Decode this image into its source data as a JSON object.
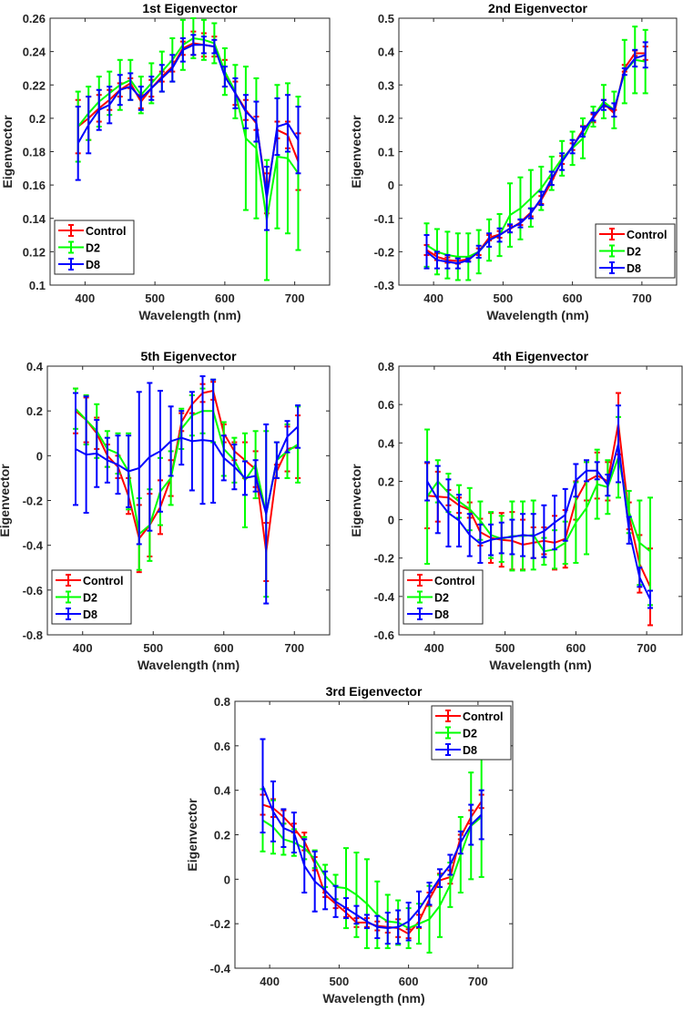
{
  "colors": {
    "Control": "#ff0000",
    "D2": "#00ff00",
    "D8": "#0000ff"
  },
  "chart_data": [
    {
      "type": "line",
      "title": "1st Eigenvector",
      "xlabel": "Wavelength (nm)",
      "ylabel": "Eigenvector",
      "xlim": [
        350,
        750
      ],
      "ylim": [
        0.1,
        0.26
      ],
      "xticks": [
        400,
        500,
        600,
        700
      ],
      "yticks": [
        0.1,
        0.12,
        0.14,
        0.16,
        0.18,
        0.2,
        0.22,
        0.24,
        0.26
      ],
      "legend_position": "bottom-left",
      "x": [
        390,
        405,
        420,
        435,
        450,
        465,
        480,
        495,
        510,
        525,
        540,
        555,
        570,
        585,
        600,
        615,
        630,
        645,
        660,
        675,
        690,
        705
      ],
      "series": [
        {
          "name": "Control",
          "values": [
            0.195,
            0.2,
            0.206,
            0.211,
            0.217,
            0.221,
            0.21,
            0.218,
            0.225,
            0.231,
            0.242,
            0.245,
            0.244,
            0.243,
            0.227,
            0.215,
            0.205,
            0.197,
            0.155,
            0.193,
            0.19,
            0.174
          ],
          "errors": [
            0.016,
            0.013,
            0.008,
            0.006,
            0.004,
            0.003,
            0.004,
            0.005,
            0.003,
            0.003,
            0.004,
            0.007,
            0.007,
            0.006,
            0.008,
            0.007,
            0.006,
            0.004,
            0.012,
            0.005,
            0.008,
            0.017
          ]
        },
        {
          "name": "D2",
          "values": [
            0.195,
            0.203,
            0.21,
            0.215,
            0.22,
            0.223,
            0.214,
            0.221,
            0.228,
            0.235,
            0.244,
            0.248,
            0.247,
            0.245,
            0.228,
            0.216,
            0.188,
            0.182,
            0.139,
            0.177,
            0.176,
            0.167
          ],
          "errors": [
            0.021,
            0.016,
            0.015,
            0.013,
            0.015,
            0.012,
            0.011,
            0.012,
            0.012,
            0.013,
            0.015,
            0.012,
            0.012,
            0.012,
            0.014,
            0.016,
            0.043,
            0.042,
            0.036,
            0.043,
            0.045,
            0.046
          ]
        },
        {
          "name": "D8",
          "values": [
            0.185,
            0.196,
            0.205,
            0.208,
            0.217,
            0.219,
            0.212,
            0.218,
            0.224,
            0.23,
            0.241,
            0.244,
            0.244,
            0.243,
            0.225,
            0.215,
            0.204,
            0.198,
            0.152,
            0.195,
            0.197,
            0.187
          ],
          "errors": [
            0.022,
            0.017,
            0.012,
            0.011,
            0.009,
            0.008,
            0.007,
            0.007,
            0.008,
            0.008,
            0.007,
            0.006,
            0.005,
            0.004,
            0.006,
            0.009,
            0.01,
            0.012,
            0.019,
            0.017,
            0.017,
            0.02
          ]
        }
      ]
    },
    {
      "type": "line",
      "title": "2nd Eigenvector",
      "xlabel": "Wavelength (nm)",
      "ylabel": "Eigenvector",
      "xlim": [
        350,
        750
      ],
      "ylim": [
        -0.3,
        0.5
      ],
      "xticks": [
        400,
        500,
        600,
        700
      ],
      "yticks": [
        -0.3,
        -0.2,
        -0.1,
        0,
        0.1,
        0.2,
        0.3,
        0.4,
        0.5
      ],
      "legend_position": "bottom-right",
      "x": [
        390,
        405,
        420,
        435,
        450,
        465,
        480,
        495,
        510,
        525,
        540,
        555,
        570,
        585,
        600,
        615,
        630,
        645,
        660,
        675,
        690,
        705
      ],
      "series": [
        {
          "name": "Control",
          "values": [
            -0.195,
            -0.215,
            -0.225,
            -0.228,
            -0.222,
            -0.2,
            -0.158,
            -0.148,
            -0.132,
            -0.112,
            -0.082,
            -0.045,
            0.01,
            0.075,
            0.115,
            0.165,
            0.2,
            0.245,
            0.215,
            0.35,
            0.395,
            0.395
          ],
          "errors": [
            0.015,
            0.01,
            0.008,
            0.008,
            0.006,
            0.01,
            0.008,
            0.01,
            0.01,
            0.008,
            0.012,
            0.012,
            0.01,
            0.012,
            0.01,
            0.012,
            0.012,
            0.01,
            0.01,
            0.01,
            0.008,
            0.02
          ]
        },
        {
          "name": "D2",
          "values": [
            -0.18,
            -0.2,
            -0.21,
            -0.215,
            -0.215,
            -0.2,
            -0.165,
            -0.15,
            -0.09,
            -0.07,
            -0.04,
            -0.01,
            0.035,
            0.08,
            0.11,
            0.14,
            0.205,
            0.25,
            0.225,
            0.34,
            0.375,
            0.37
          ],
          "errors": [
            0.065,
            0.068,
            0.07,
            0.07,
            0.07,
            0.065,
            0.062,
            0.063,
            0.095,
            0.093,
            0.085,
            0.065,
            0.05,
            0.052,
            0.05,
            0.06,
            0.03,
            0.05,
            0.055,
            0.095,
            0.1,
            0.095
          ]
        },
        {
          "name": "D8",
          "values": [
            -0.2,
            -0.225,
            -0.23,
            -0.235,
            -0.225,
            -0.2,
            -0.165,
            -0.15,
            -0.13,
            -0.115,
            -0.085,
            -0.04,
            0.02,
            0.07,
            0.115,
            0.16,
            0.205,
            0.24,
            0.225,
            0.34,
            0.38,
            0.39
          ],
          "errors": [
            0.05,
            0.025,
            0.02,
            0.015,
            0.005,
            0.018,
            0.02,
            0.02,
            0.012,
            0.012,
            0.015,
            0.02,
            0.02,
            0.025,
            0.02,
            0.015,
            0.012,
            0.015,
            0.02,
            0.01,
            0.025,
            0.038
          ]
        }
      ]
    },
    {
      "type": "line",
      "title": "5th Eigenvector",
      "xlabel": "Wavelength (nm)",
      "ylabel": "Eigenvector",
      "xlim": [
        350,
        750
      ],
      "ylim": [
        -0.8,
        0.4
      ],
      "xticks": [
        400,
        500,
        600,
        700
      ],
      "yticks": [
        -0.8,
        -0.6,
        -0.4,
        -0.2,
        0,
        0.2,
        0.4
      ],
      "legend_position": "bottom-left",
      "x": [
        390,
        405,
        420,
        435,
        450,
        465,
        480,
        495,
        510,
        525,
        540,
        555,
        570,
        585,
        600,
        615,
        630,
        645,
        660,
        675,
        690,
        705
      ],
      "series": [
        {
          "name": "Control",
          "values": [
            0.2,
            0.16,
            0.1,
            0.0,
            -0.05,
            -0.18,
            -0.37,
            -0.31,
            -0.23,
            -0.1,
            0.15,
            0.23,
            0.28,
            0.29,
            0.1,
            0.02,
            -0.02,
            -0.06,
            -0.43,
            -0.07,
            0.03,
            0.04
          ],
          "errors": [
            0.1,
            0.1,
            0.07,
            0.05,
            0.05,
            0.08,
            0.15,
            0.14,
            0.12,
            0.08,
            0.04,
            0.04,
            0.04,
            0.04,
            0.04,
            0.04,
            0.08,
            0.08,
            0.13,
            0.03,
            0.1,
            0.14
          ]
        },
        {
          "name": "D2",
          "values": [
            0.21,
            0.16,
            0.11,
            0.03,
            0.01,
            -0.07,
            -0.35,
            -0.31,
            -0.16,
            -0.1,
            0.12,
            0.18,
            0.2,
            0.2,
            0.03,
            -0.02,
            -0.11,
            -0.04,
            -0.26,
            -0.02,
            0.02,
            0.05
          ],
          "errors": [
            0.09,
            0.11,
            0.12,
            0.08,
            0.09,
            0.17,
            0.16,
            0.16,
            0.15,
            0.12,
            0.09,
            0.09,
            0.1,
            0.14,
            0.12,
            0.1,
            0.21,
            0.15,
            0.37,
            0.08,
            0.12,
            0.17
          ]
        },
        {
          "name": "D8",
          "values": [
            0.03,
            0.005,
            0.01,
            -0.02,
            -0.04,
            -0.07,
            -0.055,
            -0.005,
            0.02,
            0.065,
            0.08,
            0.065,
            0.07,
            0.065,
            -0.01,
            -0.05,
            -0.1,
            -0.09,
            -0.26,
            -0.02,
            0.085,
            0.13
          ],
          "errors": [
            0.25,
            0.26,
            0.15,
            0.1,
            0.13,
            0.16,
            0.34,
            0.33,
            0.27,
            0.155,
            0.12,
            0.22,
            0.285,
            0.275,
            0.1,
            0.1,
            0.075,
            0.07,
            0.4,
            0.08,
            0.07,
            0.095
          ]
        }
      ]
    },
    {
      "type": "line",
      "title": "4th Eigenvector",
      "xlabel": "Wavelength (nm)",
      "ylabel": "Eigenvector",
      "xlim": [
        350,
        750
      ],
      "ylim": [
        -0.6,
        0.8
      ],
      "xticks": [
        400,
        500,
        600,
        700
      ],
      "yticks": [
        -0.6,
        -0.4,
        -0.2,
        0,
        0.2,
        0.4,
        0.6,
        0.8
      ],
      "legend_position": "bottom-left",
      "x": [
        390,
        405,
        420,
        435,
        450,
        465,
        480,
        495,
        510,
        525,
        540,
        555,
        570,
        585,
        600,
        615,
        630,
        645,
        660,
        675,
        690,
        705
      ],
      "series": [
        {
          "name": "Control",
          "values": [
            0.125,
            0.12,
            0.115,
            0.075,
            0.05,
            -0.065,
            -0.095,
            -0.105,
            -0.11,
            -0.13,
            -0.12,
            -0.11,
            -0.12,
            -0.1,
            0.1,
            0.2,
            0.23,
            0.2,
            0.5,
            0.02,
            -0.23,
            -0.35
          ],
          "errors": [
            0.17,
            0.13,
            0.04,
            0.04,
            0.04,
            0.07,
            0.13,
            0.14,
            0.15,
            0.13,
            0.08,
            0.07,
            0.14,
            0.15,
            0.1,
            0.1,
            0.12,
            0.1,
            0.16,
            0.07,
            0.15,
            0.2
          ]
        },
        {
          "name": "D2",
          "values": [
            0.12,
            0.2,
            0.14,
            0.095,
            0.055,
            -0.005,
            -0.08,
            -0.1,
            -0.085,
            -0.085,
            -0.08,
            -0.165,
            -0.155,
            -0.12,
            -0.015,
            0.06,
            0.185,
            0.17,
            0.325,
            0.04,
            -0.12,
            -0.165
          ],
          "errors": [
            0.35,
            0.11,
            0.1,
            0.085,
            0.11,
            0.1,
            0.12,
            0.12,
            0.18,
            0.18,
            0.18,
            0.07,
            0.1,
            0.11,
            0.21,
            0.24,
            0.18,
            0.14,
            0.21,
            0.11,
            0.22,
            0.28
          ]
        },
        {
          "name": "D8",
          "values": [
            0.2,
            0.105,
            0.035,
            -0.005,
            -0.08,
            -0.125,
            -0.105,
            -0.095,
            -0.09,
            -0.08,
            -0.085,
            -0.06,
            -0.015,
            0.025,
            0.205,
            0.255,
            0.255,
            0.18,
            0.395,
            -0.055,
            -0.3,
            -0.415
          ],
          "errors": [
            0.1,
            0.175,
            0.175,
            0.135,
            0.11,
            0.1,
            0.08,
            0.08,
            0.09,
            0.11,
            0.115,
            0.135,
            0.14,
            0.135,
            0.085,
            0.055,
            0.045,
            0.055,
            0.2,
            0.07,
            0.05,
            0.045
          ]
        }
      ]
    },
    {
      "type": "line",
      "title": "3rd Eigenvector",
      "xlabel": "Wavelength (nm)",
      "ylabel": "Eigenvector",
      "xlim": [
        350,
        750
      ],
      "ylim": [
        -0.4,
        0.8
      ],
      "xticks": [
        400,
        500,
        600,
        700
      ],
      "yticks": [
        -0.4,
        -0.2,
        0,
        0.2,
        0.4,
        0.6,
        0.8
      ],
      "legend_position": "top-right",
      "x": [
        390,
        405,
        420,
        435,
        450,
        465,
        480,
        495,
        510,
        525,
        540,
        555,
        570,
        585,
        600,
        615,
        630,
        645,
        660,
        675,
        690,
        705
      ],
      "series": [
        {
          "name": "Control",
          "values": [
            0.335,
            0.32,
            0.28,
            0.23,
            0.17,
            0.07,
            -0.07,
            -0.11,
            -0.15,
            -0.195,
            -0.195,
            -0.21,
            -0.215,
            -0.22,
            -0.245,
            -0.19,
            -0.09,
            -0.005,
            0.01,
            0.19,
            0.28,
            0.35
          ],
          "errors": [
            0.045,
            0.04,
            0.03,
            0.02,
            0.04,
            0.03,
            0.01,
            0.02,
            0.02,
            0.02,
            0.02,
            0.02,
            0.025,
            0.04,
            0.02,
            0.03,
            0.03,
            0.03,
            0.03,
            0.01,
            0.03,
            0.03
          ]
        },
        {
          "name": "D2",
          "values": [
            0.265,
            0.235,
            0.18,
            0.165,
            0.14,
            0.09,
            0.015,
            -0.035,
            -0.04,
            -0.07,
            -0.11,
            -0.16,
            -0.19,
            -0.195,
            -0.22,
            -0.2,
            -0.18,
            -0.12,
            -0.025,
            0.11,
            0.24,
            0.28
          ],
          "errors": [
            0.14,
            0.12,
            0.07,
            0.06,
            0.05,
            0.04,
            0.05,
            0.055,
            0.18,
            0.19,
            0.2,
            0.15,
            0.12,
            0.1,
            0.09,
            0.09,
            0.15,
            0.14,
            0.1,
            0.17,
            0.24,
            0.27
          ]
        },
        {
          "name": "D8",
          "values": [
            0.42,
            0.305,
            0.23,
            0.21,
            0.06,
            -0.01,
            -0.05,
            -0.1,
            -0.13,
            -0.16,
            -0.19,
            -0.215,
            -0.22,
            -0.215,
            -0.19,
            -0.135,
            -0.065,
            0.005,
            0.065,
            0.165,
            0.245,
            0.29
          ],
          "errors": [
            0.21,
            0.135,
            0.085,
            0.09,
            0.12,
            0.135,
            0.085,
            0.07,
            0.045,
            0.04,
            0.03,
            0.05,
            0.07,
            0.075,
            0.085,
            0.08,
            0.05,
            0.04,
            0.045,
            0.05,
            0.09,
            0.11
          ]
        }
      ]
    }
  ]
}
